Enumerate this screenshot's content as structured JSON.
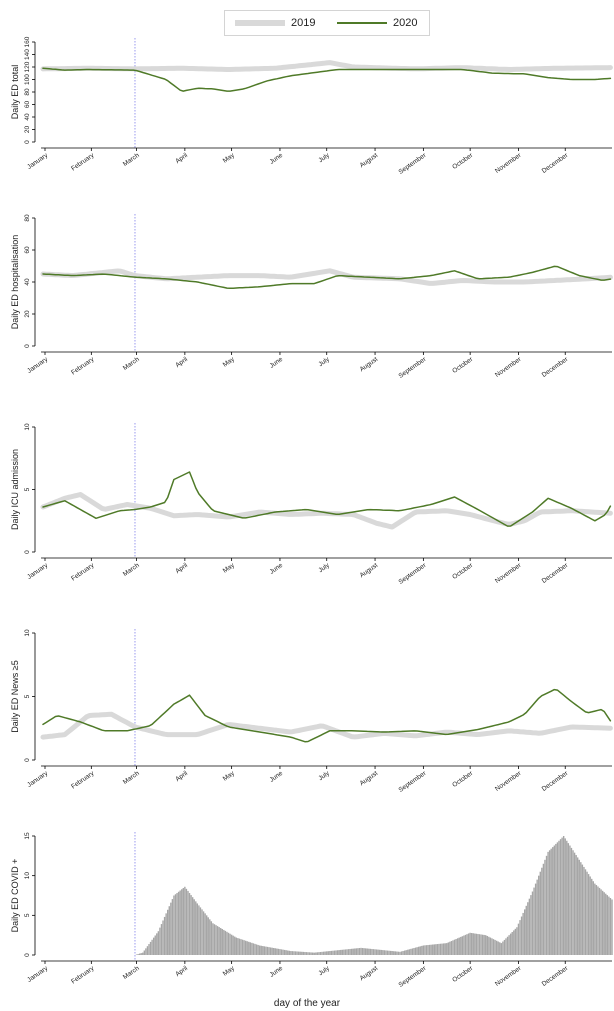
{
  "legend": {
    "series_a": "2019",
    "series_b": "2020"
  },
  "colors": {
    "series_2019": "#d9d9d9",
    "series_2020": "#4f7a28",
    "bars": "#a6a6a6",
    "vline": "#9999ee"
  },
  "xlabel": "day of the year",
  "chart_data": [
    {
      "type": "line",
      "ylabel": "Daily ED total",
      "ylim": [
        0,
        160
      ],
      "yticks": [
        0,
        20,
        40,
        60,
        80,
        100,
        120,
        140,
        160
      ],
      "months": [
        "January",
        "February",
        "March",
        "April",
        "May",
        "June",
        "July",
        "August",
        "September",
        "October",
        "November",
        "December"
      ],
      "marker_day": 60,
      "series": [
        {
          "name": "2019",
          "points": [
            [
              1,
              117
            ],
            [
              30,
              118
            ],
            [
              60,
              117
            ],
            [
              90,
              118
            ],
            [
              120,
              116
            ],
            [
              150,
              118
            ],
            [
              185,
              127
            ],
            [
              200,
              120
            ],
            [
              240,
              117
            ],
            [
              270,
              119
            ],
            [
              300,
              116
            ],
            [
              330,
              118
            ],
            [
              366,
              119
            ]
          ]
        },
        {
          "name": "2020",
          "points": [
            [
              1,
              118
            ],
            [
              15,
              115
            ],
            [
              30,
              116
            ],
            [
              60,
              115
            ],
            [
              80,
              100
            ],
            [
              90,
              81
            ],
            [
              100,
              86
            ],
            [
              110,
              85
            ],
            [
              120,
              81
            ],
            [
              130,
              85
            ],
            [
              145,
              98
            ],
            [
              160,
              106
            ],
            [
              175,
              111
            ],
            [
              190,
              116
            ],
            [
              220,
              116
            ],
            [
              240,
              116
            ],
            [
              270,
              116
            ],
            [
              290,
              110
            ],
            [
              310,
              109
            ],
            [
              325,
              103
            ],
            [
              340,
              100
            ],
            [
              355,
              100
            ],
            [
              366,
              102
            ]
          ]
        }
      ]
    },
    {
      "type": "line",
      "ylabel": "Daily ED hospitalisation",
      "ylim": [
        0,
        80
      ],
      "yticks": [
        0,
        20,
        40,
        60,
        80
      ],
      "months": [
        "January",
        "February",
        "March",
        "April",
        "May",
        "June",
        "July",
        "August",
        "September",
        "October",
        "November",
        "December"
      ],
      "marker_day": 60,
      "series": [
        {
          "name": "2019",
          "points": [
            [
              1,
              45
            ],
            [
              20,
              44
            ],
            [
              50,
              47
            ],
            [
              60,
              44
            ],
            [
              80,
              42
            ],
            [
              100,
              43
            ],
            [
              120,
              44
            ],
            [
              140,
              44
            ],
            [
              160,
              43
            ],
            [
              185,
              47
            ],
            [
              200,
              43
            ],
            [
              230,
              42
            ],
            [
              250,
              39
            ],
            [
              270,
              41
            ],
            [
              290,
              40
            ],
            [
              310,
              40
            ],
            [
              330,
              41
            ],
            [
              350,
              42
            ],
            [
              366,
              43
            ]
          ]
        },
        {
          "name": "2020",
          "points": [
            [
              1,
              45
            ],
            [
              20,
              44
            ],
            [
              40,
              45
            ],
            [
              60,
              43
            ],
            [
              80,
              42
            ],
            [
              100,
              40
            ],
            [
              120,
              36
            ],
            [
              140,
              37
            ],
            [
              160,
              39
            ],
            [
              175,
              39
            ],
            [
              190,
              44
            ],
            [
              210,
              43
            ],
            [
              230,
              42
            ],
            [
              250,
              44
            ],
            [
              265,
              47
            ],
            [
              280,
              42
            ],
            [
              300,
              43
            ],
            [
              315,
              46
            ],
            [
              330,
              50
            ],
            [
              345,
              44
            ],
            [
              360,
              41
            ],
            [
              366,
              42
            ]
          ]
        }
      ]
    },
    {
      "type": "line",
      "ylabel": "Daily ICU admission",
      "ylim": [
        0,
        10
      ],
      "yticks": [
        0,
        5,
        10
      ],
      "months": [
        "January",
        "February",
        "March",
        "April",
        "May",
        "June",
        "July",
        "August",
        "September",
        "October",
        "November",
        "December"
      ],
      "marker_day": 60,
      "series": [
        {
          "name": "2019",
          "points": [
            [
              1,
              3.6
            ],
            [
              15,
              4.3
            ],
            [
              25,
              4.6
            ],
            [
              40,
              3.4
            ],
            [
              55,
              3.8
            ],
            [
              70,
              3.5
            ],
            [
              85,
              2.9
            ],
            [
              100,
              3.0
            ],
            [
              120,
              2.8
            ],
            [
              140,
              3.2
            ],
            [
              160,
              3.0
            ],
            [
              180,
              3.1
            ],
            [
              200,
              3.0
            ],
            [
              215,
              2.3
            ],
            [
              225,
              2.0
            ],
            [
              240,
              3.2
            ],
            [
              260,
              3.3
            ],
            [
              275,
              3.0
            ],
            [
              290,
              2.5
            ],
            [
              300,
              2.2
            ],
            [
              310,
              2.5
            ],
            [
              320,
              3.2
            ],
            [
              340,
              3.3
            ],
            [
              366,
              3.1
            ]
          ]
        },
        {
          "name": "2020",
          "points": [
            [
              1,
              3.6
            ],
            [
              15,
              4.1
            ],
            [
              25,
              3.4
            ],
            [
              35,
              2.7
            ],
            [
              50,
              3.3
            ],
            [
              60,
              3.4
            ],
            [
              70,
              3.6
            ],
            [
              80,
              4.0
            ],
            [
              85,
              5.8
            ],
            [
              95,
              6.4
            ],
            [
              100,
              4.8
            ],
            [
              110,
              3.3
            ],
            [
              130,
              2.7
            ],
            [
              150,
              3.2
            ],
            [
              170,
              3.4
            ],
            [
              190,
              3.0
            ],
            [
              210,
              3.4
            ],
            [
              230,
              3.3
            ],
            [
              250,
              3.8
            ],
            [
              265,
              4.4
            ],
            [
              280,
              3.4
            ],
            [
              300,
              2.0
            ],
            [
              315,
              3.2
            ],
            [
              325,
              4.3
            ],
            [
              340,
              3.5
            ],
            [
              355,
              2.5
            ],
            [
              362,
              3.0
            ],
            [
              366,
              3.9
            ]
          ]
        }
      ]
    },
    {
      "type": "line",
      "ylabel": "Daily ED News ≥5",
      "ylim": [
        0,
        10
      ],
      "yticks": [
        0,
        5,
        10
      ],
      "months": [
        "January",
        "February",
        "March",
        "April",
        "May",
        "June",
        "July",
        "August",
        "September",
        "October",
        "November",
        "December"
      ],
      "marker_day": 60,
      "series": [
        {
          "name": "2019",
          "points": [
            [
              1,
              1.8
            ],
            [
              15,
              2.0
            ],
            [
              30,
              3.5
            ],
            [
              45,
              3.6
            ],
            [
              60,
              2.6
            ],
            [
              80,
              2.0
            ],
            [
              100,
              2.0
            ],
            [
              120,
              2.8
            ],
            [
              140,
              2.5
            ],
            [
              160,
              2.2
            ],
            [
              180,
              2.7
            ],
            [
              200,
              1.8
            ],
            [
              220,
              2.1
            ],
            [
              240,
              1.9
            ],
            [
              260,
              2.2
            ],
            [
              280,
              2.0
            ],
            [
              300,
              2.3
            ],
            [
              320,
              2.1
            ],
            [
              340,
              2.6
            ],
            [
              366,
              2.5
            ]
          ]
        },
        {
          "name": "2020",
          "points": [
            [
              1,
              2.8
            ],
            [
              10,
              3.5
            ],
            [
              25,
              3.0
            ],
            [
              40,
              2.3
            ],
            [
              55,
              2.3
            ],
            [
              70,
              2.7
            ],
            [
              85,
              4.4
            ],
            [
              95,
              5.1
            ],
            [
              105,
              3.5
            ],
            [
              120,
              2.6
            ],
            [
              140,
              2.2
            ],
            [
              160,
              1.8
            ],
            [
              170,
              1.4
            ],
            [
              185,
              2.3
            ],
            [
              200,
              2.3
            ],
            [
              220,
              2.2
            ],
            [
              240,
              2.3
            ],
            [
              260,
              2.0
            ],
            [
              280,
              2.4
            ],
            [
              300,
              3.0
            ],
            [
              310,
              3.6
            ],
            [
              320,
              5.0
            ],
            [
              330,
              5.6
            ],
            [
              340,
              4.6
            ],
            [
              350,
              3.7
            ],
            [
              360,
              4.0
            ],
            [
              366,
              2.9
            ]
          ]
        }
      ]
    },
    {
      "type": "bar",
      "ylabel": "Daily ED COVID +",
      "ylim": [
        0,
        15
      ],
      "yticks": [
        0,
        5,
        10,
        15
      ],
      "months": [
        "January",
        "February",
        "March",
        "April",
        "May",
        "June",
        "July",
        "August",
        "September",
        "October",
        "November",
        "December"
      ],
      "marker_day": 60,
      "profile": [
        [
          60,
          0
        ],
        [
          65,
          0.3
        ],
        [
          75,
          3
        ],
        [
          85,
          7.5
        ],
        [
          92,
          8.6
        ],
        [
          100,
          6.5
        ],
        [
          110,
          4
        ],
        [
          125,
          2.2
        ],
        [
          140,
          1.2
        ],
        [
          160,
          0.5
        ],
        [
          175,
          0.3
        ],
        [
          190,
          0.6
        ],
        [
          205,
          0.9
        ],
        [
          220,
          0.6
        ],
        [
          230,
          0.4
        ],
        [
          245,
          1.2
        ],
        [
          260,
          1.5
        ],
        [
          275,
          2.8
        ],
        [
          285,
          2.5
        ],
        [
          295,
          1.5
        ],
        [
          305,
          3.5
        ],
        [
          315,
          8
        ],
        [
          325,
          13
        ],
        [
          335,
          15
        ],
        [
          345,
          12
        ],
        [
          355,
          9
        ],
        [
          366,
          7
        ]
      ]
    }
  ]
}
